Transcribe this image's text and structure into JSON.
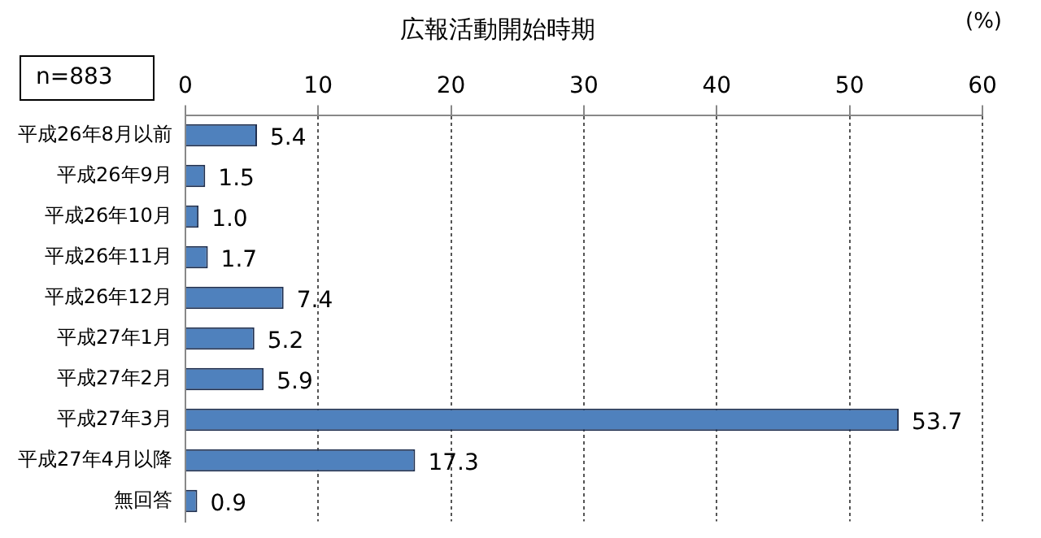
{
  "chart_data": {
    "type": "bar",
    "orientation": "horizontal",
    "title": "広報活動開始時期",
    "xlabel": "(%)",
    "categories": [
      "平成26年8月以前",
      "平成26年9月",
      "平成26年10月",
      "平成26年11月",
      "平成26年12月",
      "平成27年1月",
      "平成27年2月",
      "平成27年3月",
      "平成27年4月以降",
      "無回答"
    ],
    "values": [
      5.4,
      1.5,
      1.0,
      1.7,
      7.4,
      5.2,
      5.9,
      53.7,
      17.3,
      0.9
    ],
    "value_labels": [
      "5.4",
      "1.5",
      "1.0",
      "1.7",
      "7.4",
      "5.2",
      "5.9",
      "53.7",
      "17.3",
      "0.9"
    ],
    "color": "#4f81bd",
    "xlim": [
      0,
      60
    ],
    "xticks": [
      0,
      10,
      20,
      30,
      40,
      50,
      60
    ],
    "grid": "x",
    "legend": false,
    "annotations": [
      "n=883"
    ]
  }
}
